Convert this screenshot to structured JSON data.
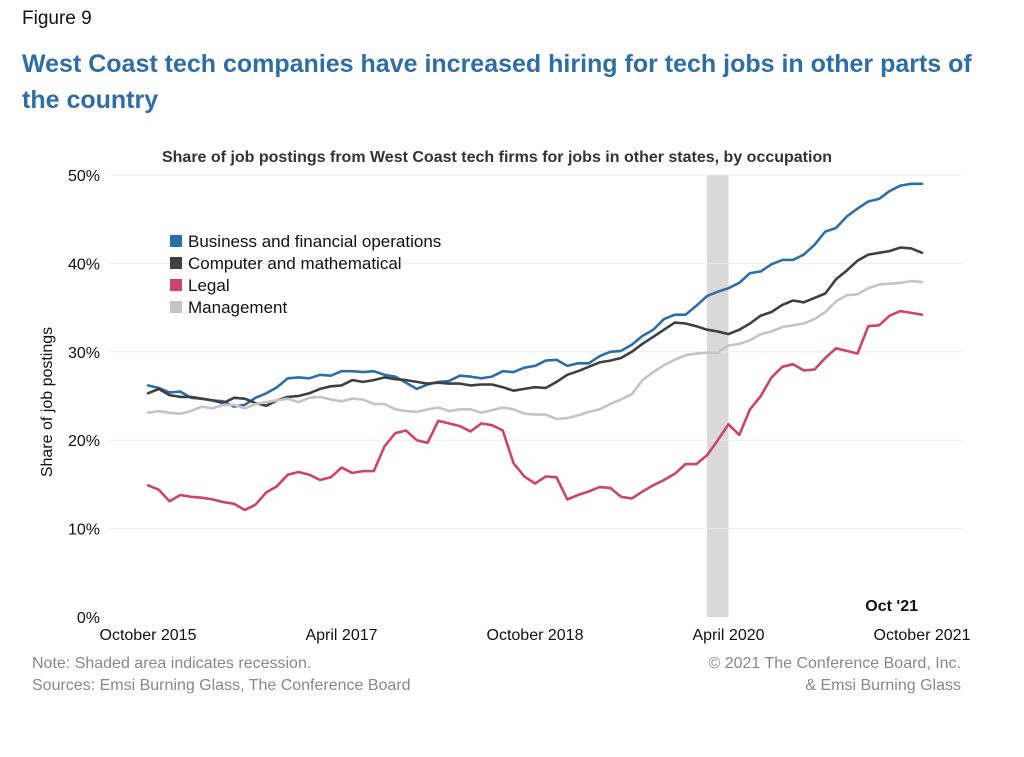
{
  "figure_label": "Figure 9",
  "headline": "West Coast tech companies have increased hiring for tech jobs in other parts of the country",
  "footer": {
    "note": "Note: Shaded area indicates recession.",
    "sources": "Sources: Emsi Burning Glass, The Conference Board",
    "credit_line1": "© 2021 The Conference Board, Inc.",
    "credit_line2": "& Emsi Burning Glass"
  },
  "chart_data": {
    "type": "line",
    "title": "Share of job postings from West Coast tech firms for jobs in other states, by occupation",
    "ylabel": "Share of job postings",
    "xlabel": "",
    "ylim": [
      0,
      50
    ],
    "yticks": [
      0,
      10,
      20,
      30,
      40,
      50
    ],
    "ytick_labels": [
      "0%",
      "10%",
      "20%",
      "30%",
      "40%",
      "50%"
    ],
    "x_start": "2015-10",
    "x_end": "2021-10",
    "xtick_labels": [
      {
        "date": "2015-10",
        "label": "October 2015"
      },
      {
        "date": "2017-04",
        "label": "April 2017"
      },
      {
        "date": "2018-10",
        "label": "October 2018"
      },
      {
        "date": "2020-04",
        "label": "April 2020"
      },
      {
        "date": "2021-10",
        "label": "October 2021"
      }
    ],
    "recession": {
      "start": "2020-02",
      "end": "2020-04"
    },
    "end_label": "Oct '21",
    "grid": "horizontal",
    "legend_position": "top-left",
    "series": [
      {
        "name": "Business and financial operations",
        "color": "#2f6ea4",
        "values": [
          26.2,
          25.9,
          25.4,
          25.5,
          24.8,
          24.7,
          24.5,
          24.4,
          23.8,
          24.0,
          24.8,
          25.3,
          26.0,
          27.0,
          27.1,
          27.0,
          27.4,
          27.3,
          27.8,
          27.8,
          27.7,
          27.8,
          27.4,
          27.2,
          26.5,
          25.8,
          26.3,
          26.6,
          26.7,
          27.3,
          27.2,
          27.0,
          27.2,
          27.8,
          27.7,
          28.2,
          28.4,
          29.0,
          29.1,
          28.4,
          28.7,
          28.7,
          29.5,
          30.0,
          30.1,
          30.8,
          31.8,
          32.5,
          33.7,
          34.2,
          34.2,
          35.2,
          36.3,
          36.8,
          37.2,
          37.8,
          38.9,
          39.1,
          39.9,
          40.4,
          40.4,
          41.0,
          42.1,
          43.6,
          44.0,
          45.3,
          46.2,
          47.0,
          47.3,
          48.2,
          48.8,
          49.0,
          49.0
        ]
      },
      {
        "name": "Computer and mathematical",
        "color": "#3d3f42",
        "values": [
          25.3,
          25.8,
          25.1,
          24.9,
          24.9,
          24.7,
          24.5,
          24.2,
          24.8,
          24.7,
          24.2,
          23.9,
          24.5,
          24.9,
          25.0,
          25.3,
          25.8,
          26.1,
          26.2,
          26.8,
          26.6,
          26.8,
          27.1,
          26.9,
          26.8,
          26.6,
          26.4,
          26.5,
          26.4,
          26.4,
          26.2,
          26.3,
          26.3,
          26.0,
          25.6,
          25.8,
          26.0,
          25.9,
          26.6,
          27.4,
          27.8,
          28.3,
          28.8,
          29.0,
          29.3,
          30.0,
          30.9,
          31.7,
          32.5,
          33.3,
          33.2,
          32.9,
          32.5,
          32.3,
          32.0,
          32.5,
          33.2,
          34.1,
          34.5,
          35.3,
          35.8,
          35.6,
          36.1,
          36.6,
          38.2,
          39.2,
          40.3,
          41.0,
          41.2,
          41.4,
          41.8,
          41.7,
          41.2
        ]
      },
      {
        "name": "Legal",
        "color": "#cc4566",
        "values": [
          14.9,
          14.4,
          13.1,
          13.8,
          13.6,
          13.5,
          13.3,
          13.0,
          12.8,
          12.1,
          12.7,
          14.1,
          14.8,
          16.1,
          16.4,
          16.1,
          15.5,
          15.8,
          16.9,
          16.3,
          16.5,
          16.5,
          19.3,
          20.8,
          21.1,
          20.0,
          19.7,
          22.2,
          21.9,
          21.6,
          21.0,
          21.9,
          21.7,
          21.1,
          17.4,
          15.9,
          15.1,
          15.9,
          15.8,
          13.3,
          13.8,
          14.2,
          14.7,
          14.6,
          13.6,
          13.4,
          14.2,
          14.9,
          15.5,
          16.2,
          17.3,
          17.3,
          18.3,
          20.0,
          21.8,
          20.6,
          23.5,
          25.0,
          27.1,
          28.3,
          28.6,
          27.9,
          28.0,
          29.3,
          30.4,
          30.1,
          29.8,
          32.9,
          33.0,
          34.1,
          34.6,
          34.4,
          34.2
        ]
      },
      {
        "name": "Management",
        "color": "#c4c4c4",
        "values": [
          23.1,
          23.3,
          23.1,
          23.0,
          23.3,
          23.8,
          23.6,
          24.0,
          24.0,
          23.6,
          24.1,
          24.3,
          24.5,
          24.7,
          24.3,
          24.8,
          24.9,
          24.6,
          24.4,
          24.7,
          24.6,
          24.1,
          24.1,
          23.5,
          23.3,
          23.2,
          23.5,
          23.7,
          23.3,
          23.5,
          23.5,
          23.1,
          23.4,
          23.7,
          23.5,
          23.0,
          22.9,
          22.9,
          22.4,
          22.5,
          22.8,
          23.2,
          23.5,
          24.1,
          24.6,
          25.2,
          26.8,
          27.7,
          28.5,
          29.1,
          29.6,
          29.8,
          29.9,
          29.9,
          30.7,
          30.9,
          31.3,
          32.0,
          32.3,
          32.8,
          33.0,
          33.2,
          33.7,
          34.5,
          35.7,
          36.4,
          36.5,
          37.2,
          37.6,
          37.7,
          37.8,
          38.0,
          37.9
        ]
      }
    ]
  }
}
